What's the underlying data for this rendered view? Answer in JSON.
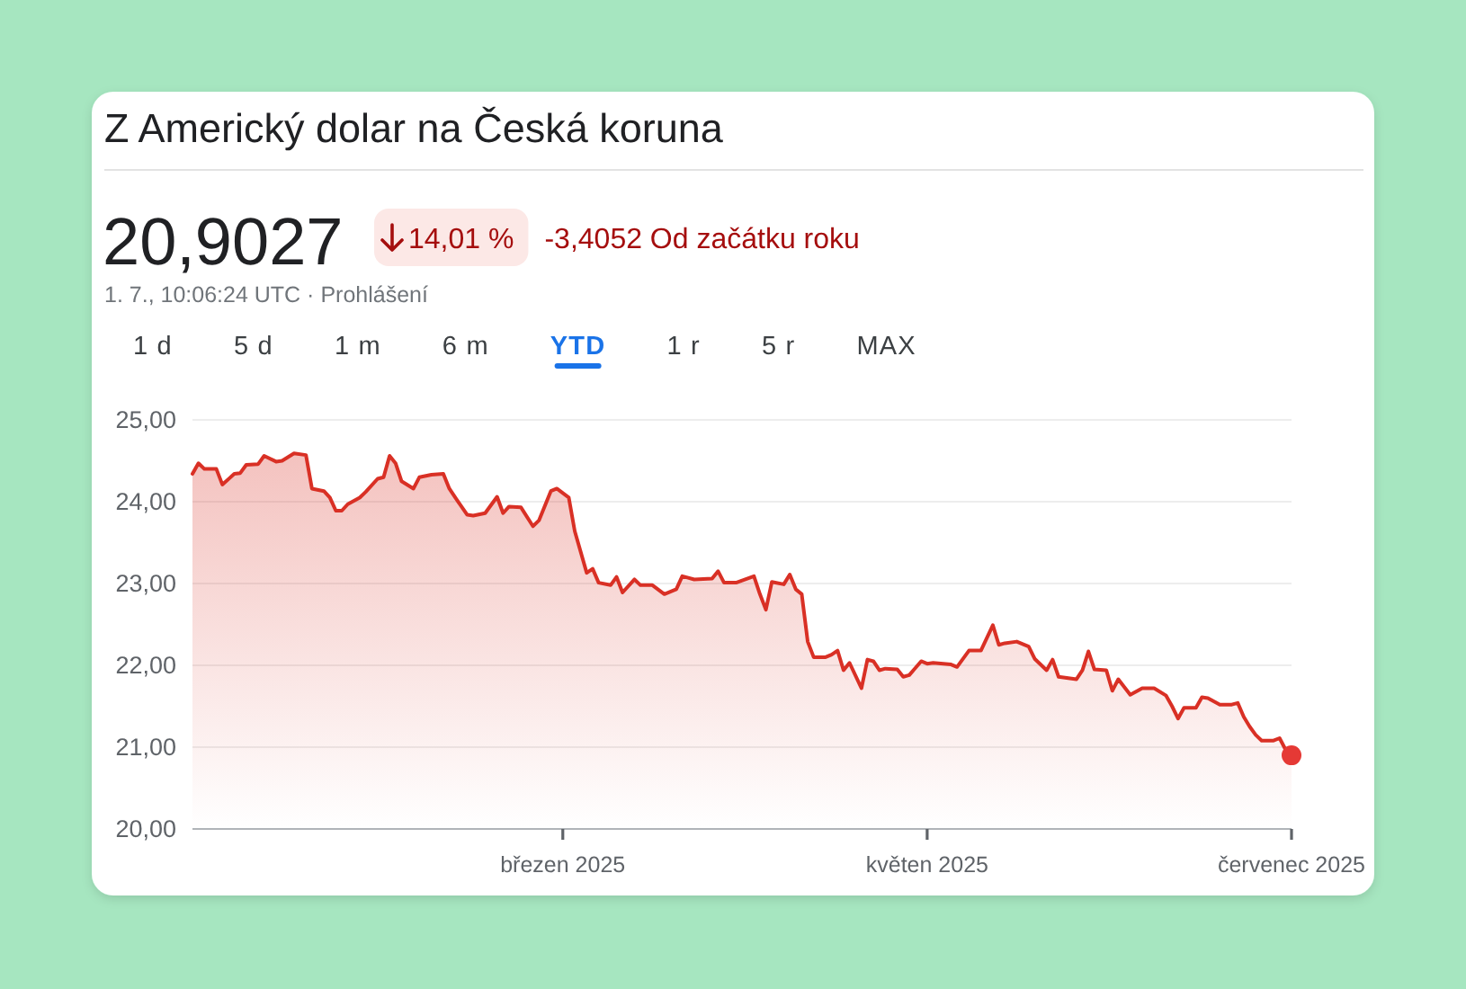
{
  "chart_data": {
    "type": "area",
    "title": "Z Americký dolar na Česká koruna",
    "annotations": [
      "20,9027",
      "14,01 %",
      "-3,4052 Od začátku roku",
      "1. 7., 10:06:24 UTC · Prohlášení",
      "1 d",
      "5 d",
      "1 m",
      "6 m",
      "YTD",
      "1 r",
      "5 r",
      "MAX"
    ],
    "x": [
      "2024-12-29",
      "2024-12-30",
      "2024-12-31",
      "2025-01-02",
      "2025-01-03",
      "2025-01-05",
      "2025-01-06",
      "2025-01-07",
      "2025-01-09",
      "2025-01-10",
      "2025-01-12",
      "2025-01-13",
      "2025-01-15",
      "2025-01-17",
      "2025-01-18",
      "2025-01-20",
      "2025-01-21",
      "2025-01-22",
      "2025-01-23",
      "2025-01-24",
      "2025-01-26",
      "2025-01-27",
      "2025-01-29",
      "2025-01-30",
      "2025-01-31",
      "2025-02-01",
      "2025-02-02",
      "2025-02-04",
      "2025-02-05",
      "2025-02-07",
      "2025-02-09",
      "2025-02-10",
      "2025-02-11",
      "2025-02-13",
      "2025-02-14",
      "2025-02-16",
      "2025-02-18",
      "2025-02-19",
      "2025-02-20",
      "2025-02-22",
      "2025-02-24",
      "2025-02-25",
      "2025-02-27",
      "2025-02-28",
      "2025-03-02",
      "2025-03-03",
      "2025-03-05",
      "2025-03-06",
      "2025-03-07",
      "2025-03-09",
      "2025-03-10",
      "2025-03-11",
      "2025-03-13",
      "2025-03-14",
      "2025-03-16",
      "2025-03-18",
      "2025-03-20",
      "2025-03-21",
      "2025-03-23",
      "2025-03-26",
      "2025-03-27",
      "2025-03-28",
      "2025-03-30",
      "2025-04-02",
      "2025-04-03",
      "2025-04-04",
      "2025-04-05",
      "2025-04-07",
      "2025-04-08",
      "2025-04-09",
      "2025-04-10",
      "2025-04-11",
      "2025-04-12",
      "2025-04-14",
      "2025-04-15",
      "2025-04-16",
      "2025-04-17",
      "2025-04-18",
      "2025-04-20",
      "2025-04-21",
      "2025-04-22",
      "2025-04-23",
      "2025-04-24",
      "2025-04-26",
      "2025-04-27",
      "2025-04-28",
      "2025-04-30",
      "2025-05-01",
      "2025-05-02",
      "2025-05-05",
      "2025-05-06",
      "2025-05-08",
      "2025-05-10",
      "2025-05-12",
      "2025-05-13",
      "2025-05-14",
      "2025-05-16",
      "2025-05-18",
      "2025-05-19",
      "2025-05-21",
      "2025-05-22",
      "2025-05-23",
      "2025-05-26",
      "2025-05-27",
      "2025-05-28",
      "2025-05-29",
      "2025-05-31",
      "2025-06-01",
      "2025-06-02",
      "2025-06-04",
      "2025-06-06",
      "2025-06-08",
      "2025-06-10",
      "2025-06-11",
      "2025-06-12",
      "2025-06-13",
      "2025-06-15",
      "2025-06-16",
      "2025-06-17",
      "2025-06-19",
      "2025-06-21",
      "2025-06-22",
      "2025-06-23",
      "2025-06-24",
      "2025-06-25",
      "2025-06-26",
      "2025-06-28",
      "2025-06-29",
      "2025-06-30",
      "2025-07-01"
    ],
    "series": [
      {
        "color": "#d93025",
        "values": [
          24.34,
          24.47,
          24.4,
          24.4,
          24.21,
          24.34,
          24.35,
          24.45,
          24.46,
          24.56,
          24.49,
          24.5,
          24.59,
          24.57,
          24.16,
          24.13,
          24.05,
          23.89,
          23.89,
          23.97,
          24.05,
          24.12,
          24.28,
          24.3,
          24.56,
          24.47,
          24.25,
          24.16,
          24.3,
          24.33,
          24.34,
          24.16,
          24.05,
          23.84,
          23.83,
          23.86,
          24.06,
          23.86,
          23.94,
          23.93,
          23.7,
          23.77,
          24.13,
          24.16,
          24.05,
          23.64,
          23.13,
          23.18,
          23.01,
          22.98,
          23.08,
          22.89,
          23.05,
          22.98,
          22.98,
          22.87,
          22.93,
          23.09,
          23.05,
          23.06,
          23.15,
          23.01,
          23.01,
          23.09,
          22.87,
          22.68,
          23.02,
          22.99,
          23.11,
          22.93,
          22.87,
          22.29,
          22.1,
          22.1,
          22.13,
          22.18,
          21.94,
          22.03,
          21.72,
          22.07,
          22.05,
          21.94,
          21.96,
          21.95,
          21.86,
          21.88,
          22.05,
          22.02,
          22.03,
          22.01,
          21.98,
          22.18,
          22.18,
          22.49,
          22.25,
          22.27,
          22.29,
          22.23,
          22.08,
          21.94,
          22.07,
          21.86,
          21.83,
          21.94,
          22.17,
          21.95,
          21.94,
          21.69,
          21.83,
          21.64,
          21.72,
          21.72,
          21.63,
          21.5,
          21.35,
          21.48,
          21.48,
          21.61,
          21.6,
          21.52,
          21.52,
          21.54,
          21.37,
          21.25,
          21.15,
          21.08,
          21.08,
          21.11,
          20.97,
          20.9
        ]
      },
      {
        "type": "scatter",
        "color": "#e53935",
        "x": [
          "2025-07-01"
        ],
        "values": [
          20.9
        ]
      }
    ],
    "xlim": [
      "2024-12-29",
      "2025-07-01"
    ],
    "xticks": [
      {
        "value": "2025-03-01",
        "label": "březen 2025"
      },
      {
        "value": "2025-05-01",
        "label": "květen 2025"
      },
      {
        "value": "2025-07-01",
        "label": "červenec 2025"
      }
    ],
    "ylim": [
      20,
      25
    ],
    "yticks": [
      {
        "value": 20,
        "label": "20,00"
      },
      {
        "value": 21,
        "label": "21,00"
      },
      {
        "value": 22,
        "label": "22,00"
      },
      {
        "value": 23,
        "label": "23,00"
      },
      {
        "value": 24,
        "label": "24,00"
      },
      {
        "value": 25,
        "label": "25,00"
      }
    ],
    "grid": "y"
  }
}
